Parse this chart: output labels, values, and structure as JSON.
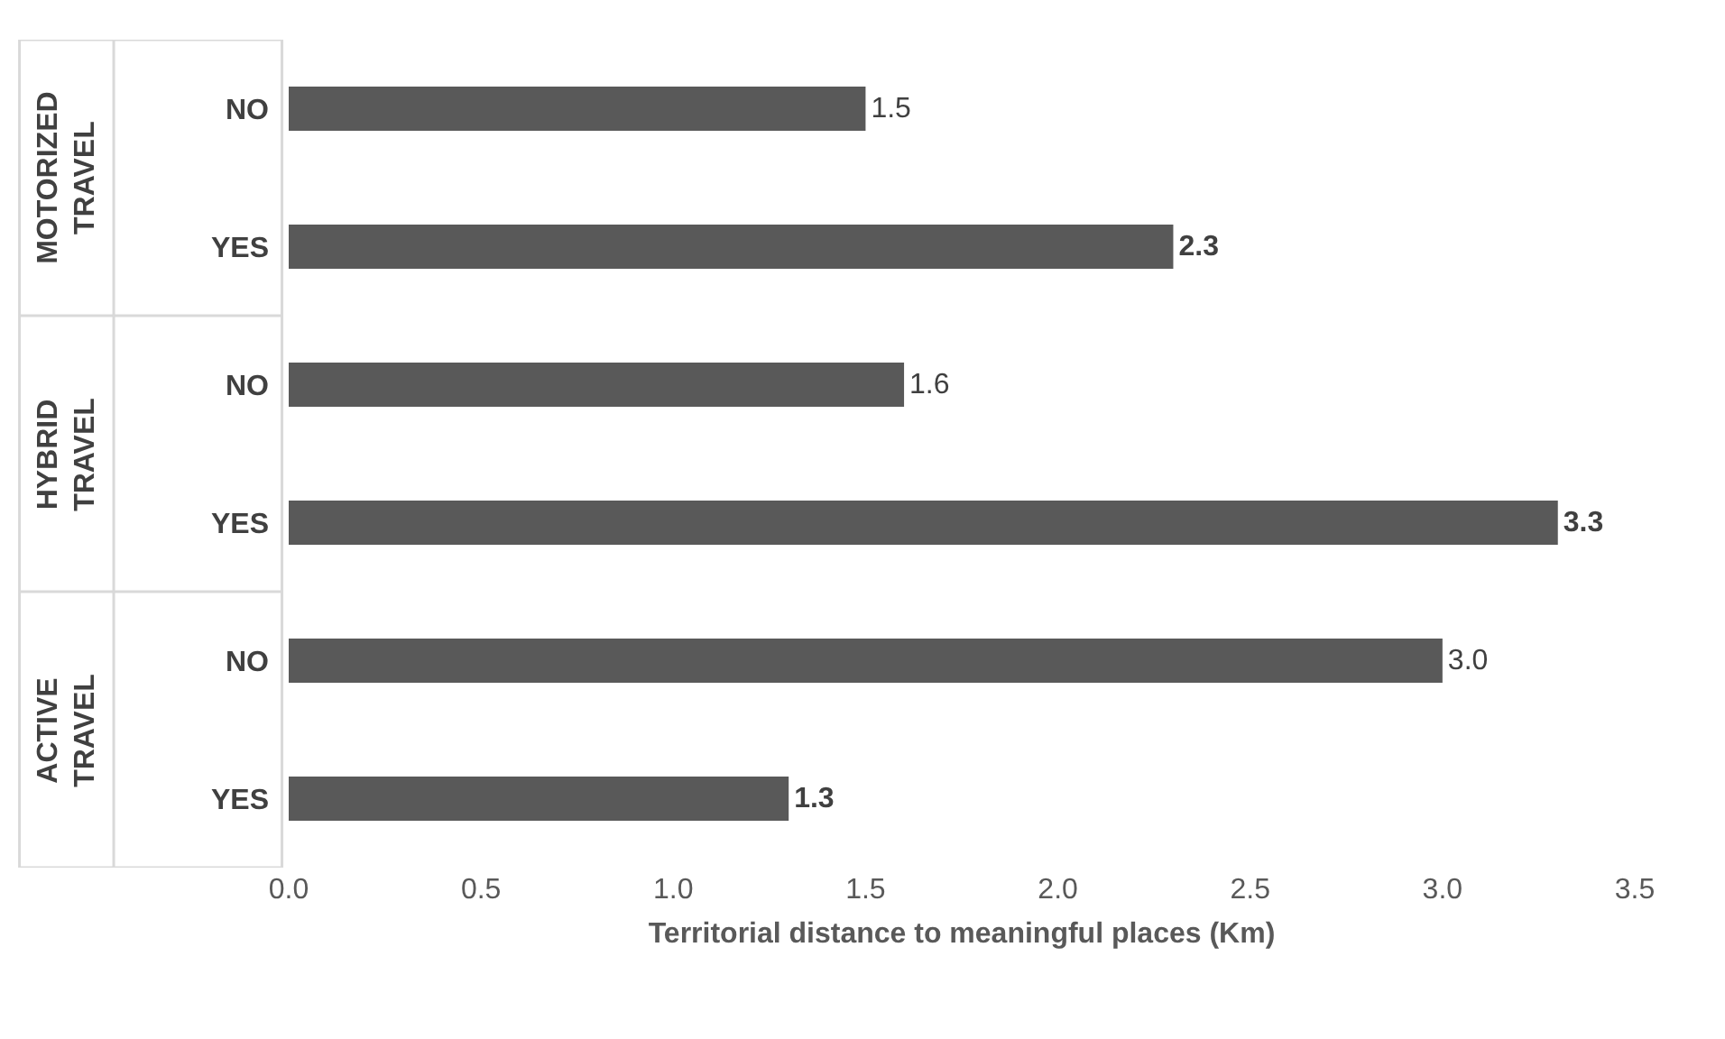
{
  "chart_data": {
    "type": "bar",
    "orientation": "horizontal",
    "xlabel": "Territorial distance to meaningful places (Km)",
    "categories": [
      "NO",
      "YES",
      "NO",
      "YES",
      "NO",
      "YES"
    ],
    "values": [
      1.5,
      2.3,
      1.6,
      3.3,
      3.0,
      1.3
    ],
    "color": "#595959",
    "value_labels": [
      "1.5",
      "2.3",
      "1.6",
      "3.3",
      "3.0",
      "1.3"
    ],
    "xlim": [
      0,
      3.5
    ],
    "xticks": [
      {
        "value": 0,
        "label": "0.0"
      },
      {
        "value": 0.5,
        "label": "0.5"
      },
      {
        "value": 1,
        "label": "1.0"
      },
      {
        "value": 1.5,
        "label": "1.5"
      },
      {
        "value": 2,
        "label": "2.0"
      },
      {
        "value": 2.5,
        "label": "2.5"
      },
      {
        "value": 3,
        "label": "3.0"
      },
      {
        "value": 3.5,
        "label": "3.5"
      }
    ],
    "annotations": [
      "MOTORIZED TRAVEL",
      "HYBRID TRAVEL",
      "ACTIVE TRAVEL"
    ],
    "grid": false
  }
}
